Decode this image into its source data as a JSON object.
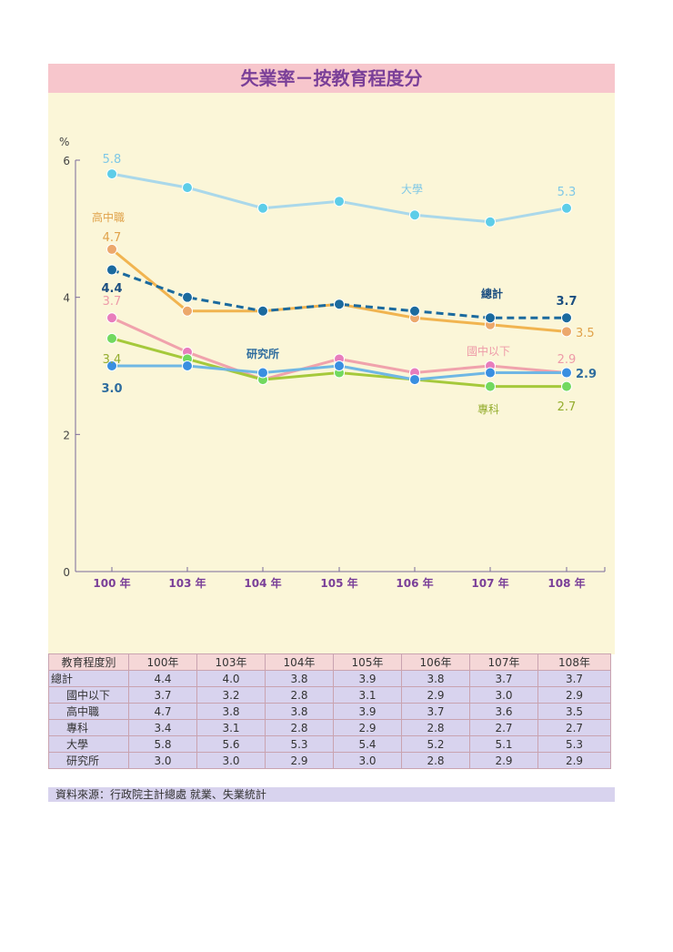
{
  "chart_data": {
    "type": "line",
    "title": "失業率－按教育程度分",
    "ylabel": "%",
    "ylim": [
      0,
      6
    ],
    "yticks": [
      "0",
      "2",
      "4",
      "6"
    ],
    "categories": [
      "100 年",
      "103 年",
      "104 年",
      "105 年",
      "106 年",
      "107 年",
      "108 年"
    ],
    "series": [
      {
        "key": "university",
        "name": "大學",
        "color": "#aad8ea",
        "marker": "#5dcde8",
        "values": [
          5.8,
          5.6,
          5.3,
          5.4,
          5.2,
          5.1,
          5.3
        ],
        "start_label": "5.8",
        "end_label": "5.3"
      },
      {
        "key": "senior_high",
        "name": "高中職",
        "color": "#f1b450",
        "marker": "#eca86c",
        "values": [
          4.7,
          3.8,
          3.8,
          3.9,
          3.7,
          3.6,
          3.5
        ],
        "start_label": "4.7",
        "end_label": "3.5"
      },
      {
        "key": "total",
        "name": "總計",
        "color": "#1b6a9e",
        "marker": "#1b6a9e",
        "dashed": true,
        "values": [
          4.4,
          4.0,
          3.8,
          3.9,
          3.8,
          3.7,
          3.7
        ],
        "start_label": "4.4",
        "end_label": "3.7"
      },
      {
        "key": "junior_high",
        "name": "國中以下",
        "color": "#f0a2ac",
        "marker": "#e87dbc",
        "values": [
          3.7,
          3.2,
          2.8,
          3.1,
          2.9,
          3.0,
          2.9
        ],
        "start_label": "3.7",
        "end_label": "2.9"
      },
      {
        "key": "junior_college",
        "name": "專科",
        "color": "#a5c93b",
        "marker": "#72d95f",
        "values": [
          3.4,
          3.1,
          2.8,
          2.9,
          2.8,
          2.7,
          2.7
        ],
        "start_label": "3.4",
        "end_label": "2.7"
      },
      {
        "key": "graduate",
        "name": "研究所",
        "color": "#6fb7e4",
        "marker": "#3a8fe0",
        "values": [
          3.0,
          3.0,
          2.9,
          3.0,
          2.8,
          2.9,
          2.9
        ],
        "start_label": "3.0",
        "end_label": "2.9"
      }
    ]
  },
  "table": {
    "corner": "教育程度別",
    "years": [
      "100年",
      "103年",
      "104年",
      "105年",
      "106年",
      "107年",
      "108年"
    ],
    "rows": [
      {
        "label": "總計",
        "values": [
          "4.4",
          "4.0",
          "3.8",
          "3.9",
          "3.8",
          "3.7",
          "3.7"
        ]
      },
      {
        "label": "國中以下",
        "values": [
          "3.7",
          "3.2",
          "2.8",
          "3.1",
          "2.9",
          "3.0",
          "2.9"
        ]
      },
      {
        "label": "高中職",
        "values": [
          "4.7",
          "3.8",
          "3.8",
          "3.9",
          "3.7",
          "3.6",
          "3.5"
        ]
      },
      {
        "label": "專科",
        "values": [
          "3.4",
          "3.1",
          "2.8",
          "2.9",
          "2.8",
          "2.7",
          "2.7"
        ]
      },
      {
        "label": "大學",
        "values": [
          "5.8",
          "5.6",
          "5.3",
          "5.4",
          "5.2",
          "5.1",
          "5.3"
        ]
      },
      {
        "label": "研究所",
        "values": [
          "3.0",
          "3.0",
          "2.9",
          "3.0",
          "2.8",
          "2.9",
          "2.9"
        ]
      }
    ]
  },
  "source": "資料來源：行政院主計總處 就業、失業統計"
}
